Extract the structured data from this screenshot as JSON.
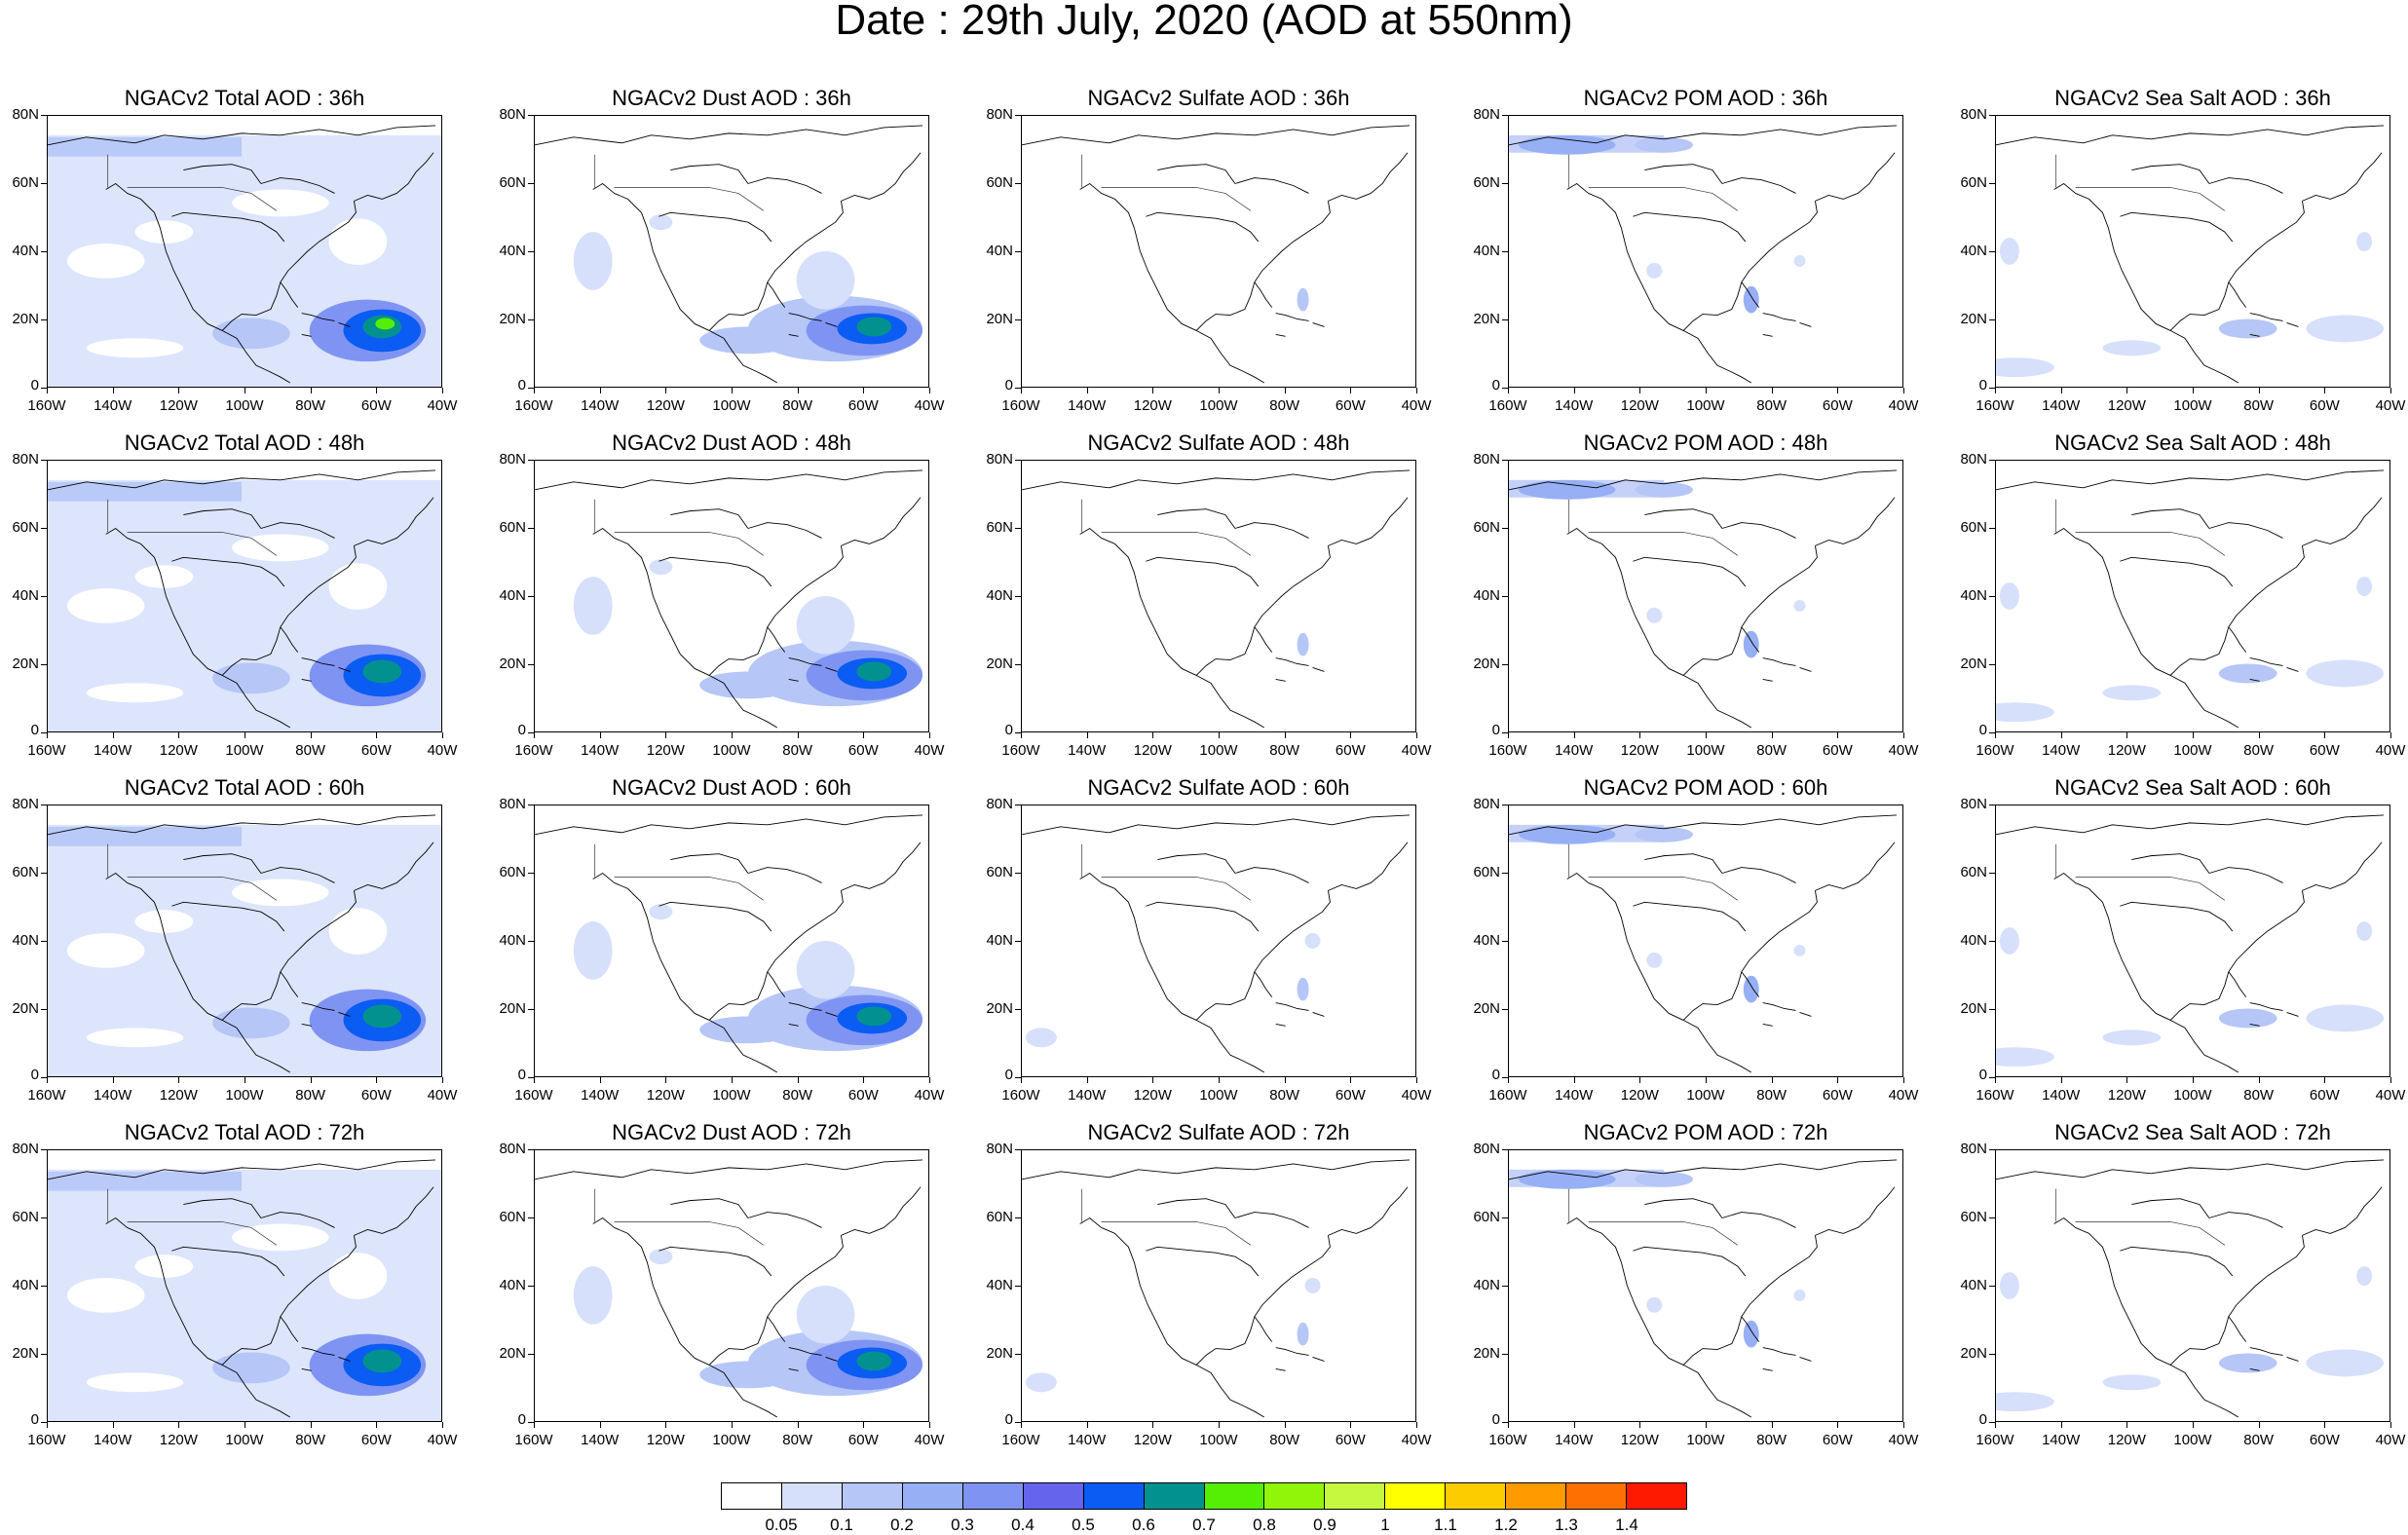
{
  "title": "Date : 29th July, 2020 (AOD at 550nm)",
  "panels": [
    [
      "NGACv2 Total AOD : 36h",
      "NGACv2 Dust AOD : 36h",
      "NGACv2 Sulfate AOD : 36h",
      "NGACv2 POM AOD : 36h",
      "NGACv2 Sea Salt AOD : 36h"
    ],
    [
      "NGACv2 Total AOD : 48h",
      "NGACv2 Dust AOD : 48h",
      "NGACv2 Sulfate AOD : 48h",
      "NGACv2 POM AOD : 48h",
      "NGACv2 Sea Salt AOD : 48h"
    ],
    [
      "NGACv2 Total AOD : 60h",
      "NGACv2 Dust AOD : 60h",
      "NGACv2 Sulfate AOD : 60h",
      "NGACv2 POM AOD : 60h",
      "NGACv2 Sea Salt AOD : 60h"
    ],
    [
      "NGACv2 Total AOD : 72h",
      "NGACv2 Dust AOD : 72h",
      "NGACv2 Sulfate AOD : 72h",
      "NGACv2 POM AOD : 72h",
      "NGACv2 Sea Salt  AOD : 72h"
    ]
  ],
  "lat_labels": [
    "80N",
    "60N",
    "40N",
    "20N",
    "0"
  ],
  "lon_labels": [
    "160W",
    "140W",
    "120W",
    "100W",
    "80W",
    "60W",
    "40W"
  ],
  "colorbar": {
    "colors": [
      "#ffffff",
      "#d6e0fb",
      "#b6c6f7",
      "#97aff4",
      "#7f94f2",
      "#6465ec",
      "#0b5cf2",
      "#03918f",
      "#55ee05",
      "#91f50a",
      "#c6f83f",
      "#ffff00",
      "#fccc01",
      "#ff9a00",
      "#fe7002",
      "#fe1a01"
    ],
    "labels": [
      "0.05",
      "0.1",
      "0.2",
      "0.3",
      "0.4",
      "0.5",
      "0.6",
      "0.7",
      "0.8",
      "0.9",
      "1",
      "1.1",
      "1.2",
      "1.3",
      "1.4"
    ]
  }
}
